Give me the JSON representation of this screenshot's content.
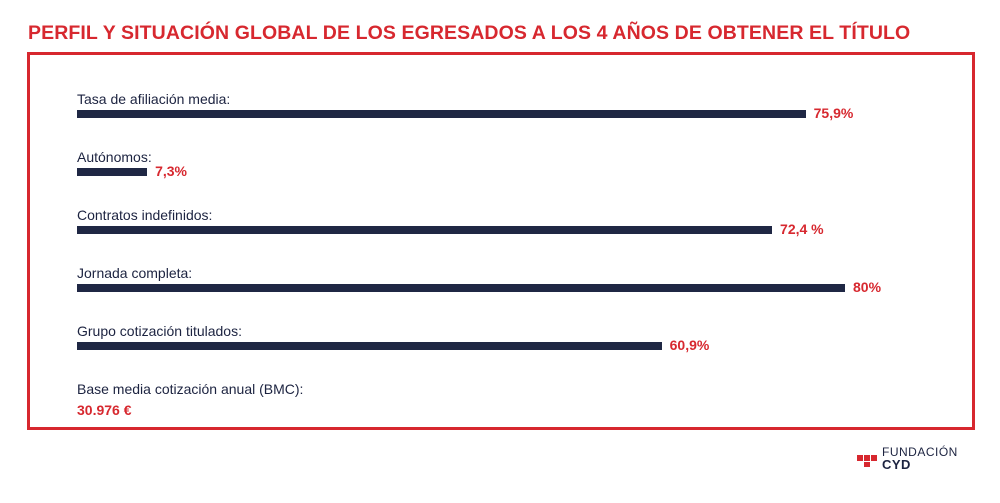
{
  "title": "PERFIL Y SITUACIÓN GLOBAL DE LOS EGRESADOS A LOS 4 AÑOS DE OBTENER EL TÍTULO",
  "colors": {
    "accent": "#d7282f",
    "bar": "#1f2744",
    "text": "#1c2340"
  },
  "chart_data": {
    "type": "bar",
    "orientation": "horizontal",
    "categories": [
      "Tasa de afiliación media:",
      "Autónomos:",
      "Contratos indefinidos:",
      "Jornada completa:",
      "Grupo cotización titulados:"
    ],
    "values": [
      75.9,
      7.3,
      72.4,
      80,
      60.9
    ],
    "value_labels": [
      "75,9%",
      "7,3%",
      "72,4 %",
      "80%",
      "60,9%"
    ],
    "unit": "%",
    "xlim": [
      0,
      100
    ]
  },
  "extra_metric": {
    "label": "Base media cotización anual (BMC):",
    "value": "30.976 €"
  },
  "logo": {
    "line1": "FUNDACIÓN",
    "line2": "CYD",
    "icon": "fundacion-cyd-logo-mark"
  }
}
